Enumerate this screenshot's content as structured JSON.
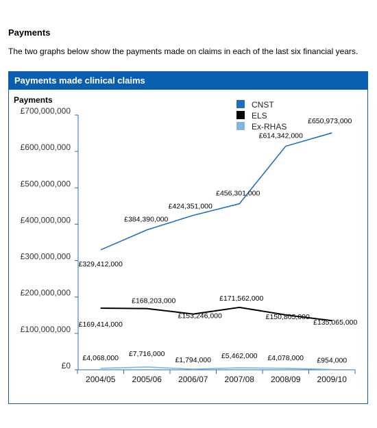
{
  "section": {
    "title": "Payments",
    "intro": "The two graphs below show the payments made on claims in each of the last six financial years."
  },
  "panel": {
    "title": "Payments made clinical claims"
  },
  "chart_data": {
    "type": "line",
    "ylabel": "Payments",
    "xlabel": "",
    "ylim": [
      0,
      700000000
    ],
    "yticks": [
      0,
      100000000,
      200000000,
      300000000,
      400000000,
      500000000,
      600000000,
      700000000
    ],
    "ytick_labels": [
      "£0",
      "£100,000,000",
      "£200,000,000",
      "£300,000,000",
      "£400,000,000",
      "£500,000,000",
      "£600,000,000",
      "£700,000,000"
    ],
    "categories": [
      "2004/05",
      "2005/06",
      "2006/07",
      "2007/08",
      "2008/09",
      "2009/10"
    ],
    "legend_position": "top-center",
    "grid": false,
    "series": [
      {
        "name": "CNST",
        "color": "#1f6ec0",
        "values": [
          329412000,
          384390000,
          424351000,
          456301000,
          614342000,
          650973000
        ],
        "labels": [
          "£329,412,000",
          "£384,390,000",
          "£424,351,000",
          "£456,301,000",
          "£614,342,000",
          "£650,973,000"
        ]
      },
      {
        "name": "ELS",
        "color": "#000000",
        "values": [
          169414000,
          168203000,
          153246000,
          171562000,
          150805000,
          135065000
        ],
        "labels": [
          "£169,414,000",
          "£168,203,000",
          "£153,246,000",
          "£171,562,000",
          "£150,805,000",
          "£135,065,000"
        ]
      },
      {
        "name": "Ex-RHAS",
        "color": "#7fb6e0",
        "values": [
          4068000,
          7716000,
          1794000,
          5462000,
          4078000,
          954000
        ],
        "labels": [
          "£4,068,000",
          "£7,716,000",
          "£1,794,000",
          "£5,462,000",
          "£4,078,000",
          "£954,000"
        ]
      }
    ]
  }
}
